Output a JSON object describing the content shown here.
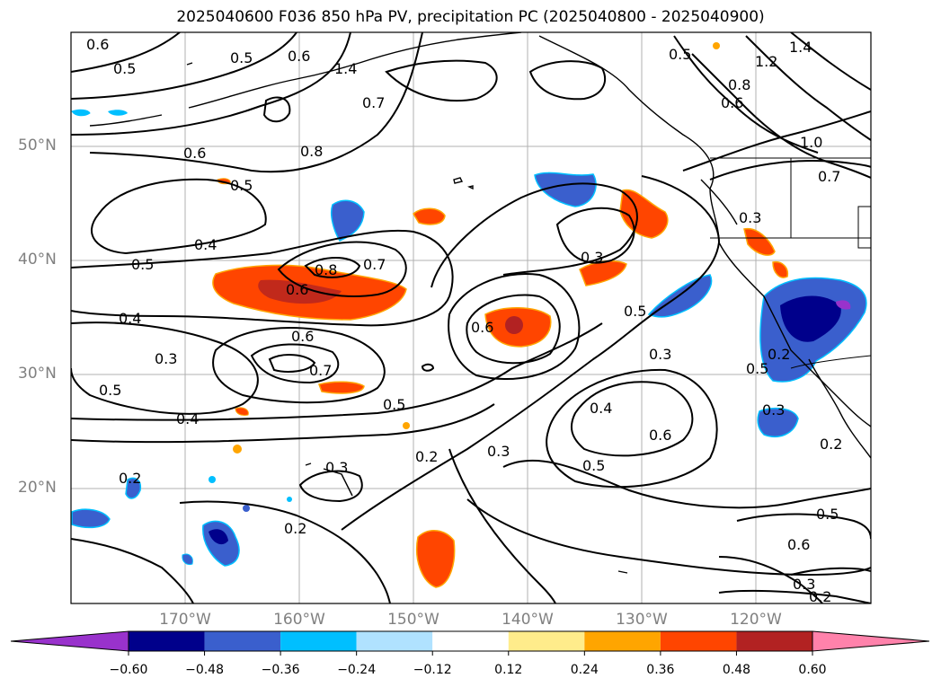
{
  "title": "2025040600 F036 850 hPa PV, precipitation PC (2025040800 - 2025040900)",
  "map": {
    "lat_labels": [
      "50°N",
      "40°N",
      "30°N",
      "20°N"
    ],
    "lon_labels": [
      "170°W",
      "160°W",
      "150°W",
      "140°W",
      "130°W",
      "120°W"
    ],
    "extent": {
      "lon": [
        -180,
        -110
      ],
      "lat": [
        10,
        60
      ]
    },
    "grid": true
  },
  "colorbar": {
    "ticks": [
      "−0.60",
      "−0.48",
      "−0.36",
      "−0.24",
      "−0.12",
      "0.12",
      "0.24",
      "0.36",
      "0.48",
      "0.60"
    ],
    "colors": [
      "#9932cc",
      "#00008b",
      "#3a5fcd",
      "#00bfff",
      "#b0e2ff",
      "#ffffff",
      "#ffec8b",
      "#ffa500",
      "#ff4500",
      "#b22222",
      "#ff82ab"
    ]
  },
  "contour_labels": [
    "0.6",
    "0.5",
    "0.5",
    "0.6",
    "0.7",
    "0.8",
    "0.6",
    "0.5",
    "0.4",
    "0.5",
    "0.8",
    "0.7",
    "0.6",
    "0.4",
    "0.3",
    "0.6",
    "0.7",
    "0.5",
    "0.4",
    "0.5",
    "0.2",
    "0.3",
    "0.2",
    "0.5",
    "0.6",
    "0.3",
    "0.5",
    "0.3",
    "0.4",
    "0.6",
    "0.5",
    "0.3",
    "0.3",
    "0.2",
    "0.2",
    "0.5",
    "0.6",
    "0.3",
    "0.2",
    "0.2",
    "0.5",
    "0.8",
    "0.6",
    "1.0",
    "0.7",
    "1.2",
    "1.4",
    "1.4",
    "0.3"
  ]
}
